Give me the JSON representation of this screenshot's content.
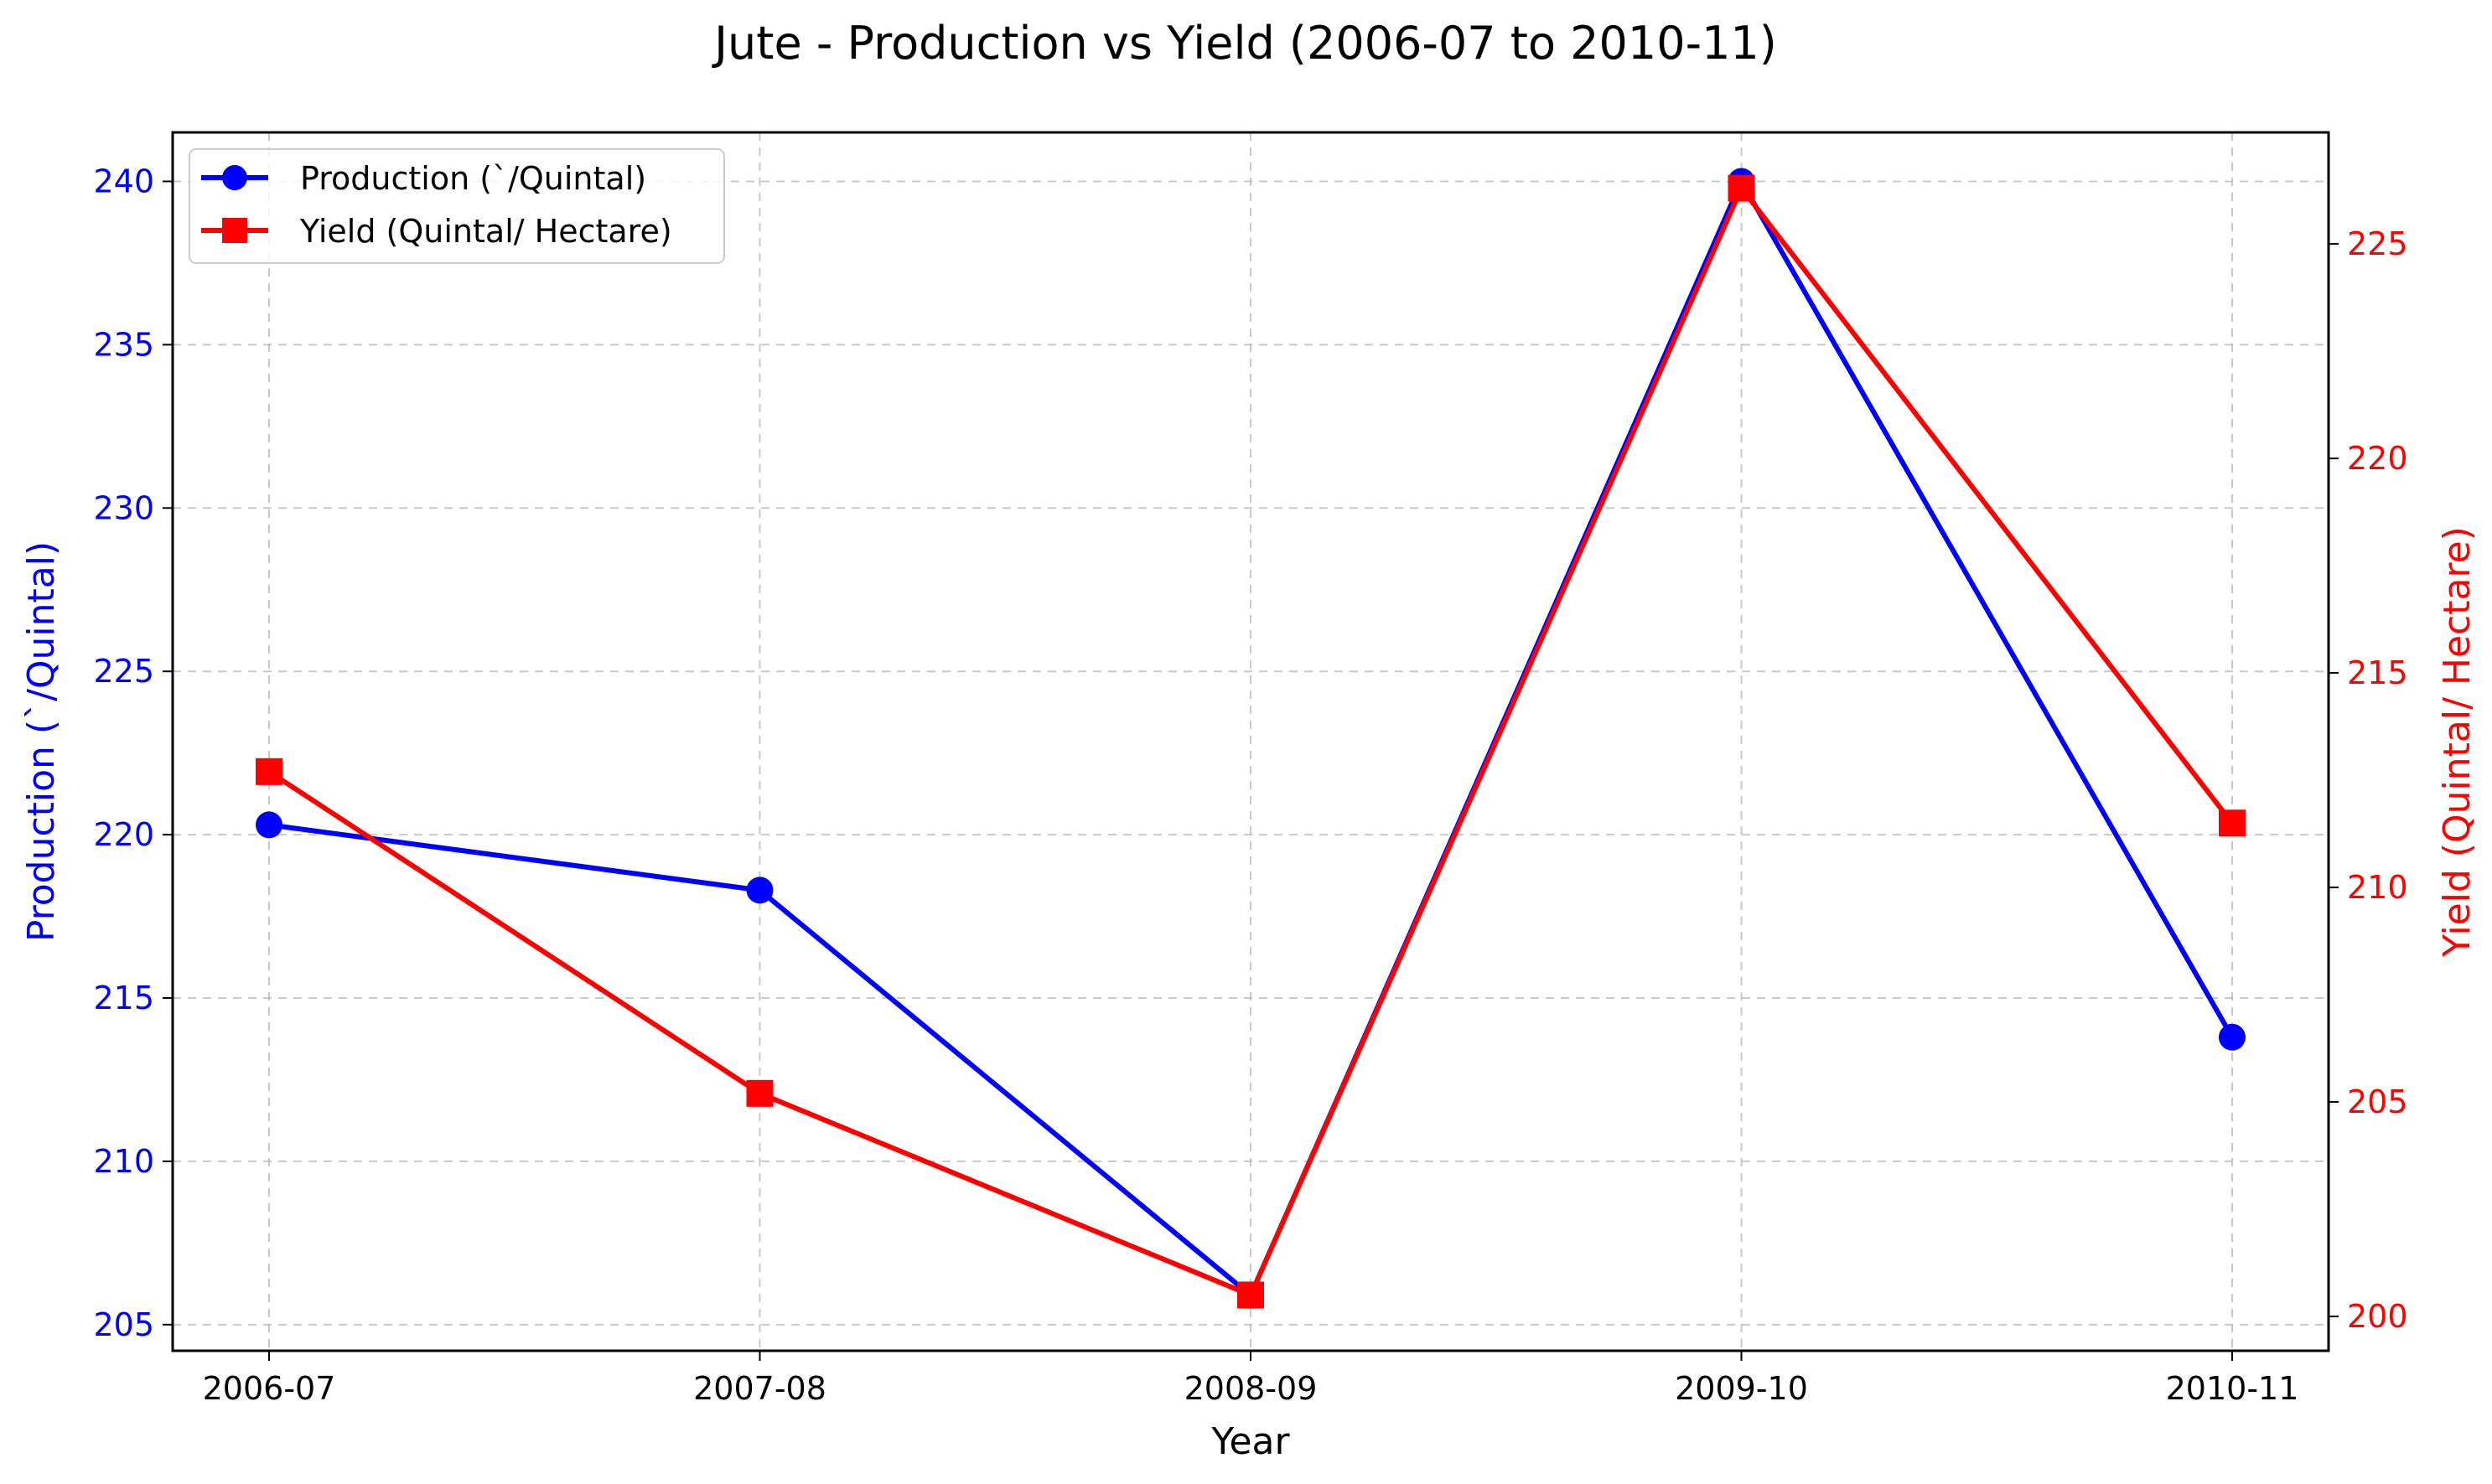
{
  "chart_data": {
    "type": "line",
    "title": "Jute - Production vs Yield (2006-07 to 2010-11)",
    "xlabel": "Year",
    "categories": [
      "2006-07",
      "2007-08",
      "2008-09",
      "2009-10",
      "2010-11"
    ],
    "left_axis": {
      "label": "Production (`/Quintal)",
      "range": [
        204.2,
        241.5
      ],
      "ticks": [
        "205",
        "210",
        "215",
        "220",
        "225",
        "230",
        "235",
        "240"
      ],
      "color": "#0000ff"
    },
    "right_axis": {
      "label": "Yield (Quintal/ Hectare)",
      "range": [
        199.2,
        227.6
      ],
      "ticks": [
        "200",
        "205",
        "210",
        "215",
        "220",
        "225"
      ],
      "color": "#ff0000"
    },
    "series": [
      {
        "name": "Production (`/Quintal)",
        "axis": "left",
        "color": "#0000ff",
        "marker": "circle",
        "values": [
          220.3,
          218.3,
          205.9,
          240.0,
          213.8
        ]
      },
      {
        "name": "Yield (Quintal/ Hectare)",
        "axis": "right",
        "color": "#ff0000",
        "marker": "square",
        "values": [
          212.7,
          205.2,
          200.5,
          226.3,
          211.5
        ]
      }
    ],
    "grid": true,
    "legend_position": "top-left"
  }
}
